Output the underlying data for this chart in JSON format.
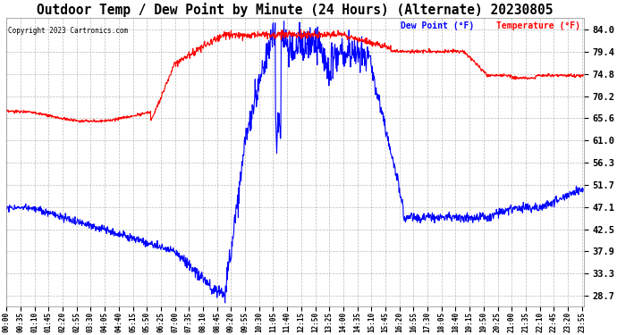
{
  "title": "Outdoor Temp / Dew Point by Minute (24 Hours) (Alternate) 20230805",
  "copyright": "Copyright 2023 Cartronics.com",
  "legend_dew": "Dew Point (°F)",
  "legend_temp": "Temperature (°F)",
  "dew_color": "#0000ff",
  "temp_color": "#ff0000",
  "bg_color": "#ffffff",
  "grid_color": "#aaaaaa",
  "title_fontsize": 10.5,
  "ylabel_right_ticks": [
    84.0,
    79.4,
    74.8,
    70.2,
    65.6,
    61.0,
    56.3,
    51.7,
    47.1,
    42.5,
    37.9,
    33.3,
    28.7
  ],
  "ylim": [
    26.5,
    86.5
  ],
  "xlim": [
    0,
    1439
  ],
  "line_width": 0.8
}
